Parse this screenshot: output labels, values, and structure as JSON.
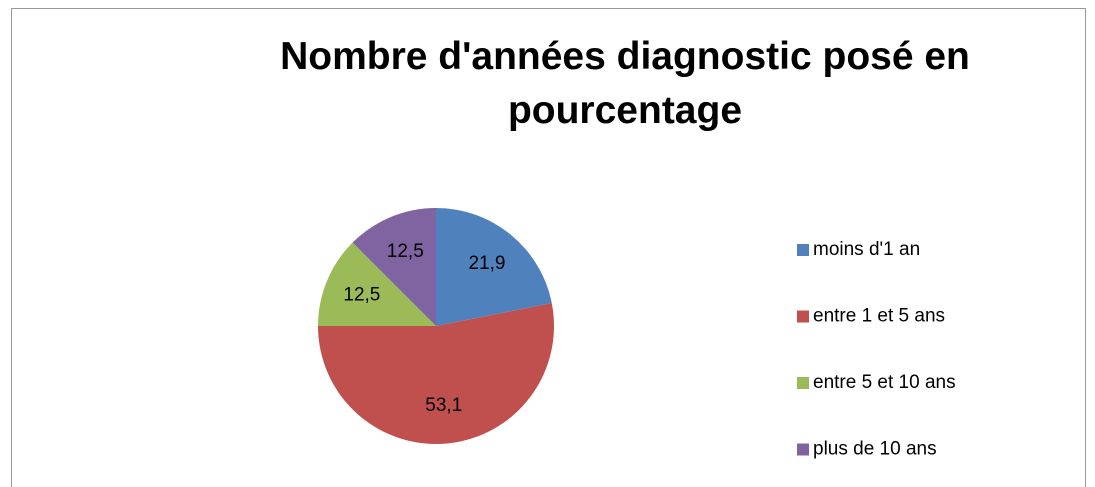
{
  "chart_data": {
    "type": "pie",
    "title": "Nombre d'années diagnostic posé en pourcentage",
    "categories": [
      "moins d'1 an",
      "entre 1 et 5 ans",
      "entre 5 et 10 ans",
      "plus de 10 ans"
    ],
    "values": [
      21.9,
      53.1,
      12.5,
      12.5
    ],
    "value_labels": [
      "21,9",
      "53,1",
      "12,5",
      "12,5"
    ],
    "colors": [
      "#4f81bd",
      "#c0504d",
      "#9bbb59",
      "#8064a2"
    ],
    "legend": "right"
  }
}
